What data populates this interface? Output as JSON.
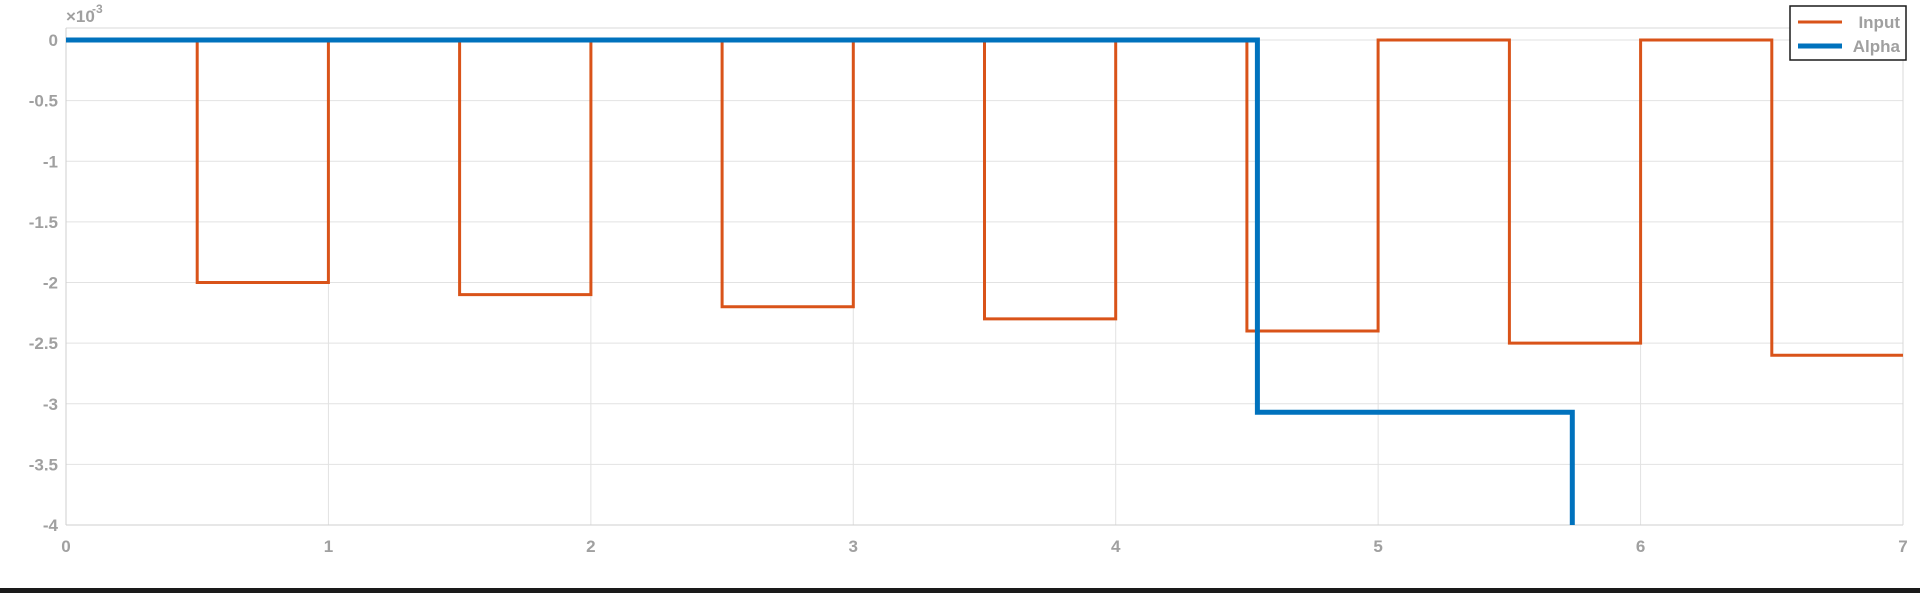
{
  "chart_data": {
    "type": "line",
    "title": "",
    "xlabel": "",
    "ylabel": "",
    "xlim": [
      0,
      7
    ],
    "ylim": [
      -4,
      0
    ],
    "y_exponent_label": "×10",
    "y_exponent_power": "-3",
    "x_ticks": [
      0,
      1,
      2,
      3,
      4,
      5,
      6,
      7
    ],
    "x_tick_labels": [
      "0",
      "1",
      "2",
      "3",
      "4",
      "5",
      "6",
      "7"
    ],
    "y_ticks": [
      0,
      -0.5,
      -1,
      -1.5,
      -2,
      -2.5,
      -3,
      -3.5,
      -4
    ],
    "y_tick_labels": [
      "0",
      "-0.5",
      "-1",
      "-1.5",
      "-2",
      "-2.5",
      "-3",
      "-3.5",
      "-4"
    ],
    "grid": true,
    "legend_position": "top-right",
    "step": true,
    "series": [
      {
        "name": "Input",
        "color": "#d95319",
        "x": [
          0,
          0.5,
          0.5,
          1,
          1,
          1.5,
          1.5,
          2,
          2,
          2.5,
          2.5,
          3,
          3,
          3.5,
          3.5,
          4,
          4,
          4.5,
          4.5,
          5,
          5,
          5.5,
          5.5,
          6,
          6,
          6.5,
          6.5,
          7
        ],
        "y": [
          0,
          0,
          -2.0,
          -2.0,
          0,
          0,
          -2.1,
          -2.1,
          0,
          0,
          -2.2,
          -2.2,
          0,
          0,
          -2.3,
          -2.3,
          0,
          0,
          -2.4,
          -2.4,
          0,
          0,
          -2.5,
          -2.5,
          0,
          0,
          -2.6,
          -2.6
        ]
      },
      {
        "name": "Alpha",
        "color": "#0072bd",
        "x": [
          0,
          4.54,
          4.54,
          5.74,
          5.74
        ],
        "y": [
          0,
          0,
          -3.07,
          -3.07,
          -4.0
        ]
      }
    ]
  }
}
